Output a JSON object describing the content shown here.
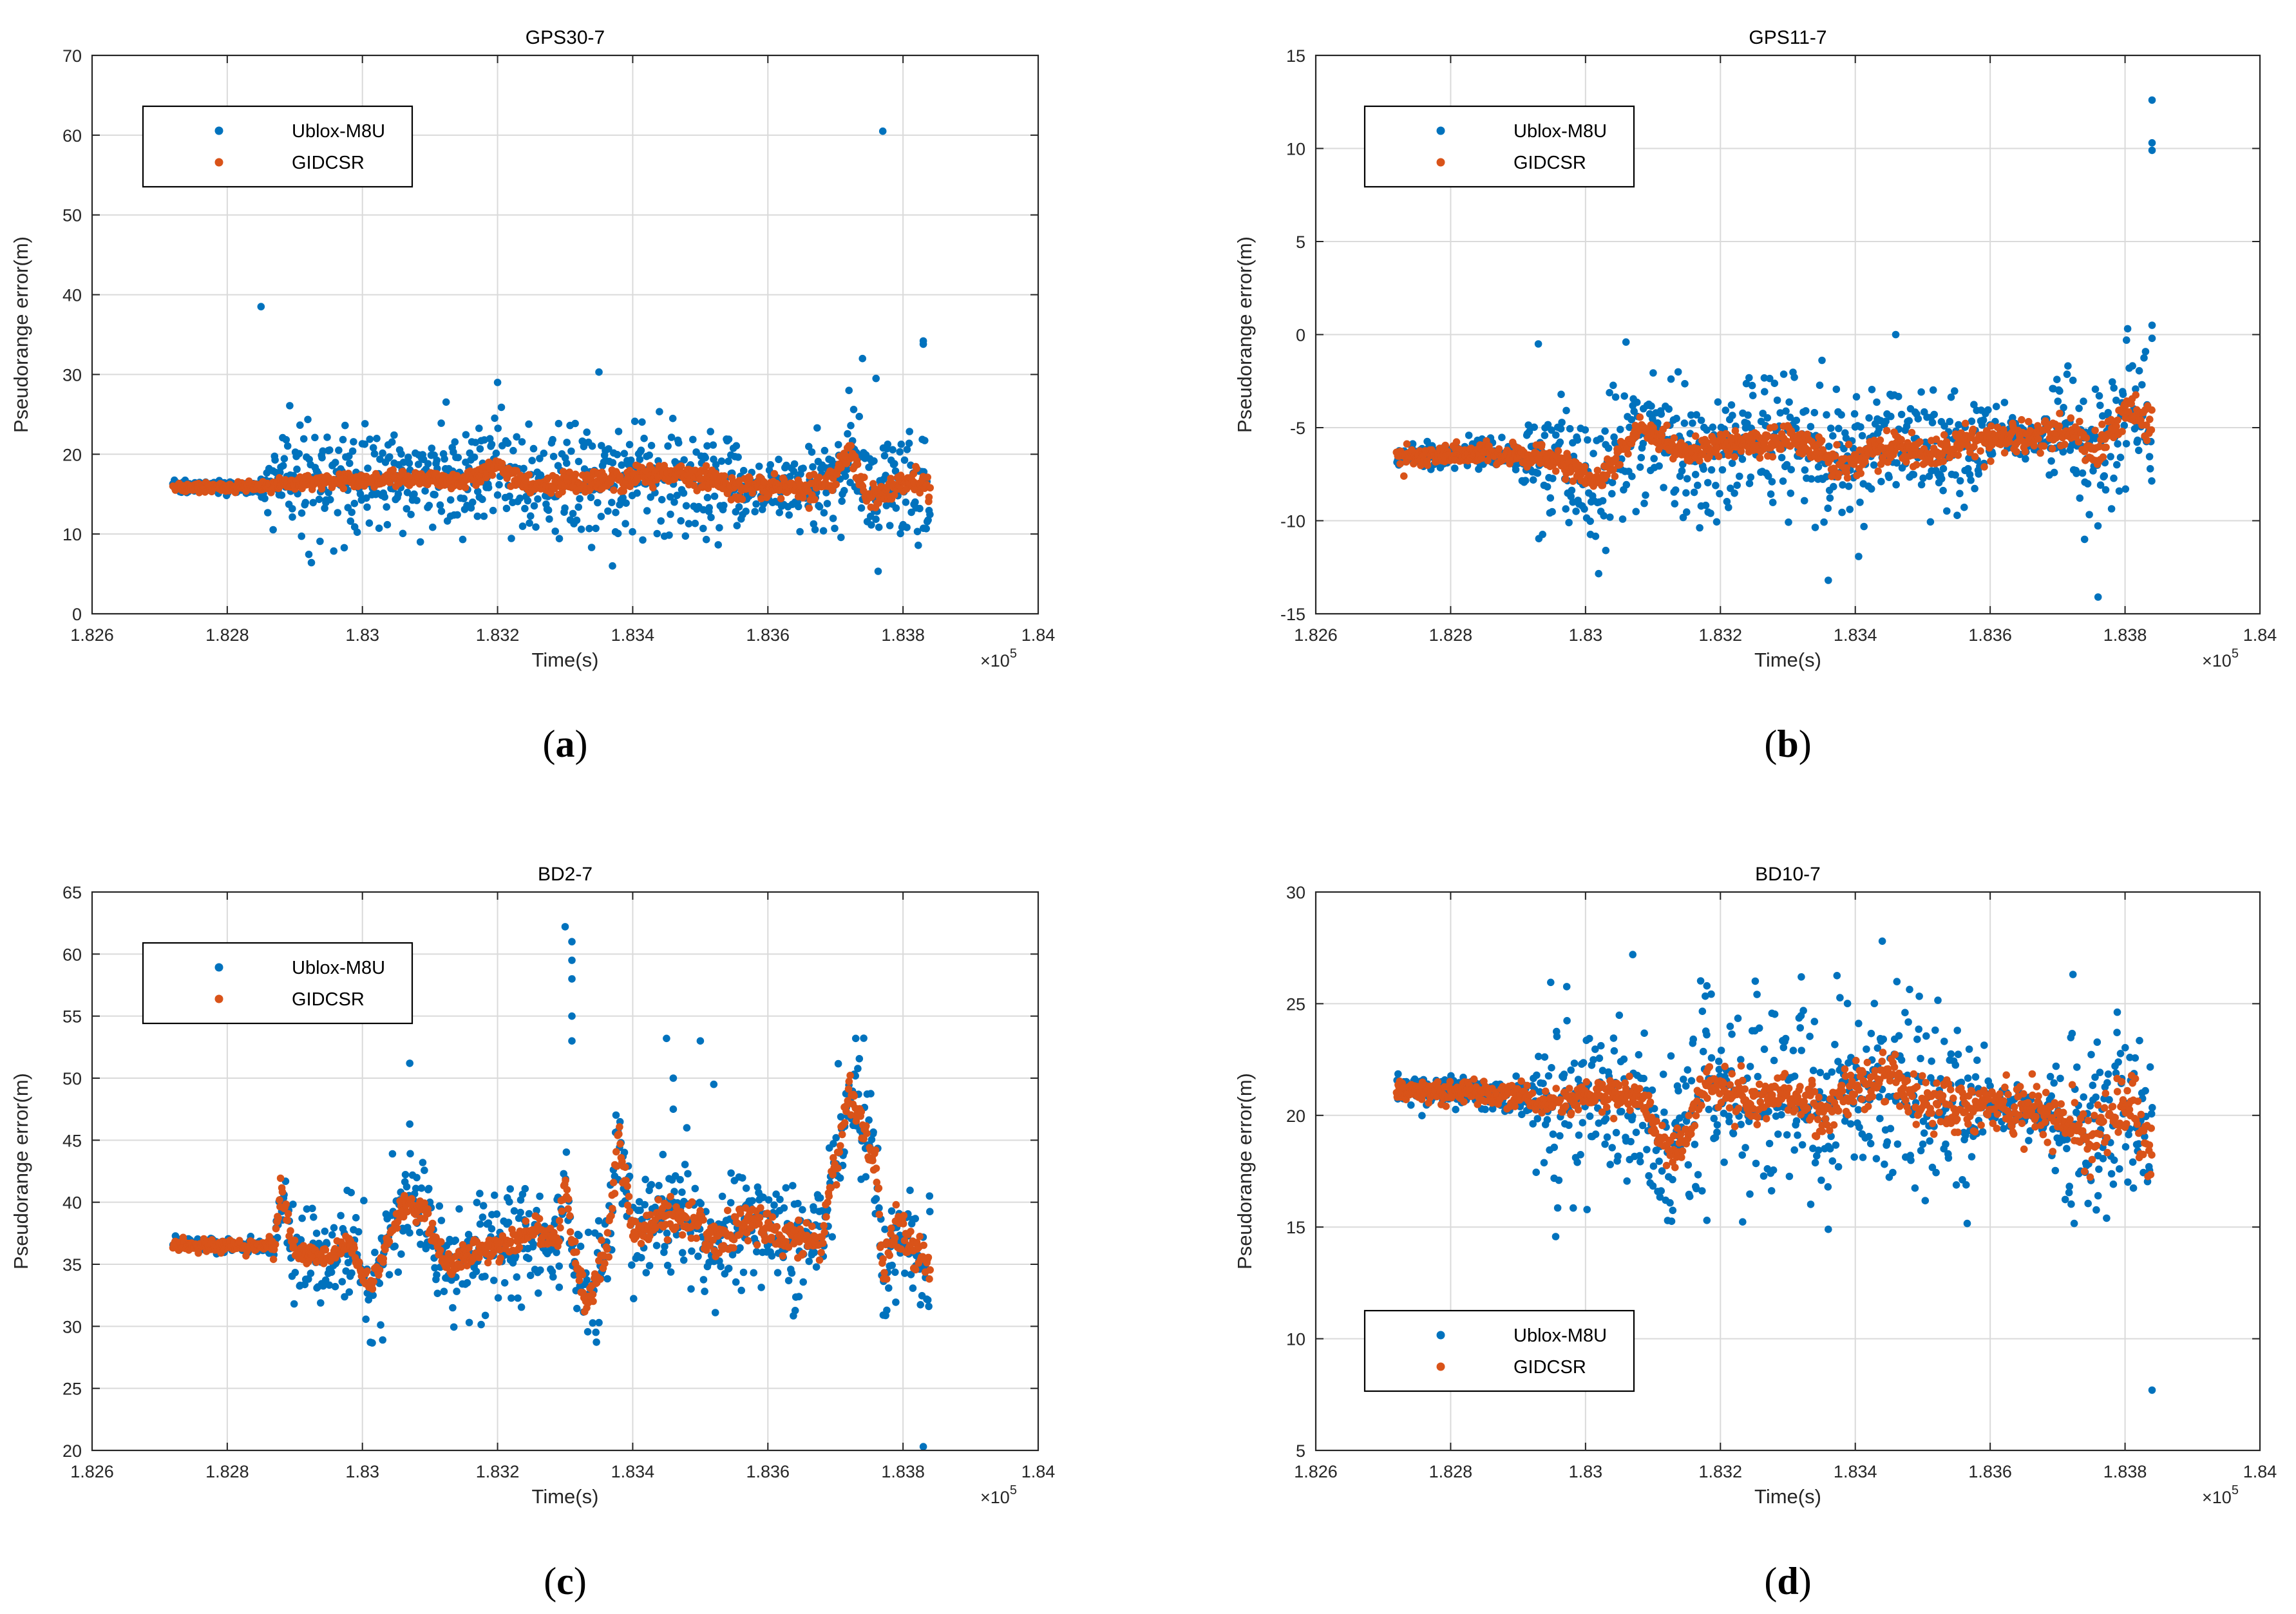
{
  "figure": {
    "colors": {
      "series1": "#0072BD",
      "series2": "#D95319",
      "grid": "#DADADA",
      "axis": "#262626"
    }
  },
  "chart_data": [
    {
      "type": "scatter",
      "panel": "a",
      "caption": "(a)",
      "caption_letter": "a",
      "title": "GPS30-7",
      "xlabel": "Time(s)",
      "ylabel": "Pseudorange error(m)",
      "xlim": [
        1.826,
        1.84
      ],
      "ylim": [
        0,
        70
      ],
      "x_scale_exponent": "×10",
      "x_scale_power": "5",
      "xticks": [
        1.826,
        1.828,
        1.83,
        1.832,
        1.834,
        1.836,
        1.838,
        1.84
      ],
      "xtick_labels": [
        "1.826",
        "1.828",
        "1.83",
        "1.832",
        "1.834",
        "1.836",
        "1.838",
        "1.84"
      ],
      "yticks": [
        0,
        10,
        20,
        30,
        40,
        50,
        60,
        70
      ],
      "ytick_labels": [
        "0",
        "10",
        "20",
        "30",
        "40",
        "50",
        "60",
        "70"
      ],
      "grid": true,
      "legend_position": "top-left",
      "legend": [
        "Ublox-M8U",
        "GIDCSR"
      ],
      "x_range": [
        1.8272,
        1.8384
      ],
      "baseline_points": [
        [
          1.8272,
          16.0
        ],
        [
          1.8285,
          15.8
        ],
        [
          1.829,
          16.5
        ],
        [
          1.831,
          17.0
        ],
        [
          1.8315,
          16.5
        ],
        [
          1.832,
          18.5
        ],
        [
          1.8325,
          16.0
        ],
        [
          1.8335,
          16.5
        ],
        [
          1.8345,
          17.5
        ],
        [
          1.835,
          17.0
        ],
        [
          1.8355,
          15.8
        ],
        [
          1.8365,
          15.5
        ],
        [
          1.837,
          17.0
        ],
        [
          1.8372,
          21.0
        ],
        [
          1.8375,
          14.5
        ],
        [
          1.838,
          16.5
        ],
        [
          1.8384,
          16.5
        ]
      ],
      "series": [
        {
          "name": "Ublox-M8U",
          "noise_profile": [
            [
              1.8272,
              0.4
            ],
            [
              1.8285,
              0.5
            ],
            [
              1.8288,
              3.5
            ],
            [
              1.8355,
              3.5
            ],
            [
              1.836,
              1.5
            ],
            [
              1.8368,
              3.5
            ],
            [
              1.8384,
              4.0
            ]
          ],
          "count": 900,
          "outliers": [
            [
              1.8285,
              38.5
            ],
            [
              1.8377,
              60.5
            ],
            [
              1.8383,
              34.2
            ],
            [
              1.8383,
              33.8
            ],
            [
              1.8374,
              32.0
            ],
            [
              1.8335,
              30.3
            ],
            [
              1.832,
              29.0
            ],
            [
              1.8337,
              6.0
            ],
            [
              1.8372,
              28.0
            ],
            [
              1.8376,
              29.5
            ]
          ]
        },
        {
          "name": "GIDCSR",
          "noise_profile": [
            [
              1.8272,
              0.3
            ],
            [
              1.8384,
              0.9
            ]
          ],
          "count": 900,
          "outliers": []
        }
      ]
    },
    {
      "type": "scatter",
      "panel": "b",
      "caption": "(b)",
      "caption_letter": "b",
      "title": "GPS11-7",
      "xlabel": "Time(s)",
      "ylabel": "Pseudorange error(m)",
      "xlim": [
        1.826,
        1.84
      ],
      "ylim": [
        -15,
        15
      ],
      "x_scale_exponent": "×10",
      "x_scale_power": "5",
      "xticks": [
        1.826,
        1.828,
        1.83,
        1.832,
        1.834,
        1.836,
        1.838,
        1.84
      ],
      "xtick_labels": [
        "1.826",
        "1.828",
        "1.83",
        "1.832",
        "1.834",
        "1.836",
        "1.838",
        "1.84"
      ],
      "yticks": [
        -15,
        -10,
        -5,
        0,
        5,
        10,
        15
      ],
      "ytick_labels": [
        "-15",
        "-10",
        "-5",
        "0",
        "5",
        "10",
        "15"
      ],
      "grid": true,
      "legend_position": "top-left",
      "legend": [
        "Ublox-M8U",
        "GIDCSR"
      ],
      "x_range": [
        1.8272,
        1.8384
      ],
      "baseline_points": [
        [
          1.8272,
          -6.5
        ],
        [
          1.8285,
          -6.4
        ],
        [
          1.8295,
          -6.6
        ],
        [
          1.8302,
          -8.0
        ],
        [
          1.8308,
          -5.0
        ],
        [
          1.8315,
          -6.5
        ],
        [
          1.832,
          -5.8
        ],
        [
          1.8325,
          -6.0
        ],
        [
          1.833,
          -5.5
        ],
        [
          1.8338,
          -7.0
        ],
        [
          1.8345,
          -6.0
        ],
        [
          1.8352,
          -6.5
        ],
        [
          1.836,
          -5.5
        ],
        [
          1.8368,
          -5.5
        ],
        [
          1.8372,
          -5.0
        ],
        [
          1.8376,
          -6.5
        ],
        [
          1.838,
          -4.0
        ],
        [
          1.8384,
          -5.0
        ]
      ],
      "series": [
        {
          "name": "Ublox-M8U",
          "noise_profile": [
            [
              1.8272,
              0.3
            ],
            [
              1.829,
              0.4
            ],
            [
              1.8293,
              1.9
            ],
            [
              1.8358,
              1.8
            ],
            [
              1.836,
              0.6
            ],
            [
              1.8368,
              0.5
            ],
            [
              1.837,
              1.8
            ],
            [
              1.8384,
              1.8
            ]
          ],
          "count": 900,
          "outliers": [
            [
              1.8384,
              12.6
            ],
            [
              1.8384,
              10.3
            ],
            [
              1.8384,
              9.9
            ],
            [
              1.8384,
              0.5
            ],
            [
              1.8384,
              -0.2
            ],
            [
              1.8293,
              -0.5
            ],
            [
              1.8306,
              -0.4
            ],
            [
              1.8346,
              0.0
            ],
            [
              1.8336,
              -13.2
            ],
            [
              1.8376,
              -14.1
            ],
            [
              1.8374,
              -11.0
            ],
            [
              1.8303,
              -11.6
            ]
          ]
        },
        {
          "name": "GIDCSR",
          "noise_profile": [
            [
              1.8272,
              0.25
            ],
            [
              1.8384,
              0.5
            ]
          ],
          "count": 900,
          "outliers": []
        }
      ]
    },
    {
      "type": "scatter",
      "panel": "c",
      "caption": "(c)",
      "caption_letter": "c",
      "title": "BD2-7",
      "xlabel": "Time(s)",
      "ylabel": "Pseudorange error(m)",
      "xlim": [
        1.826,
        1.84
      ],
      "ylim": [
        20,
        65
      ],
      "x_scale_exponent": "×10",
      "x_scale_power": "5",
      "xticks": [
        1.826,
        1.828,
        1.83,
        1.832,
        1.834,
        1.836,
        1.838,
        1.84
      ],
      "xtick_labels": [
        "1.826",
        "1.828",
        "1.83",
        "1.832",
        "1.834",
        "1.836",
        "1.838",
        "1.84"
      ],
      "yticks": [
        20,
        25,
        30,
        35,
        40,
        45,
        50,
        55,
        60,
        65
      ],
      "ytick_labels": [
        "20",
        "25",
        "30",
        "35",
        "40",
        "45",
        "50",
        "55",
        "60",
        "65"
      ],
      "grid": true,
      "legend_position": "top-left",
      "legend": [
        "Ublox-M8U",
        "GIDCSR"
      ],
      "x_range": [
        1.8272,
        1.8384
      ],
      "baseline_points": [
        [
          1.8272,
          36.5
        ],
        [
          1.8287,
          36.5
        ],
        [
          1.8288,
          41.0
        ],
        [
          1.829,
          36.0
        ],
        [
          1.8295,
          35.5
        ],
        [
          1.8298,
          37.0
        ],
        [
          1.8301,
          33.0
        ],
        [
          1.8304,
          37.0
        ],
        [
          1.8306,
          40.0
        ],
        [
          1.8309,
          39.5
        ],
        [
          1.8312,
          35.0
        ],
        [
          1.8315,
          35.5
        ],
        [
          1.832,
          36.5
        ],
        [
          1.8325,
          37.5
        ],
        [
          1.8329,
          37.0
        ],
        [
          1.833,
          42.0
        ],
        [
          1.8331,
          36.5
        ],
        [
          1.8333,
          32.0
        ],
        [
          1.8336,
          35.5
        ],
        [
          1.8338,
          45.5
        ],
        [
          1.834,
          37.5
        ],
        [
          1.8345,
          39.0
        ],
        [
          1.835,
          38.0
        ],
        [
          1.8352,
          37.0
        ],
        [
          1.8358,
          38.5
        ],
        [
          1.8362,
          37.0
        ],
        [
          1.8368,
          37.0
        ],
        [
          1.8372,
          49.0
        ],
        [
          1.8376,
          43.0
        ],
        [
          1.8377,
          34.0
        ],
        [
          1.8379,
          38.0
        ],
        [
          1.8384,
          34.5
        ]
      ],
      "series": [
        {
          "name": "Ublox-M8U",
          "noise_profile": [
            [
              1.8272,
              0.3
            ],
            [
              1.8287,
              0.3
            ],
            [
              1.829,
              2.2
            ],
            [
              1.8384,
              2.5
            ]
          ],
          "count": 900,
          "outliers": [
            [
              1.833,
              62.2
            ],
            [
              1.8331,
              61.0
            ],
            [
              1.8331,
              59.5
            ],
            [
              1.8331,
              58.0
            ],
            [
              1.8331,
              55.0
            ],
            [
              1.8331,
              53.0
            ],
            [
              1.8307,
              51.2
            ],
            [
              1.8345,
              53.2
            ],
            [
              1.835,
              53.0
            ],
            [
              1.8373,
              53.2
            ],
            [
              1.8307,
              46.3
            ],
            [
              1.8383,
              20.3
            ],
            [
              1.8303,
              28.9
            ],
            [
              1.8335,
              30.3
            ],
            [
              1.8346,
              50.0
            ],
            [
              1.8352,
              49.5
            ],
            [
              1.8346,
              47.5
            ],
            [
              1.8348,
              46.0
            ]
          ]
        },
        {
          "name": "GIDCSR",
          "noise_profile": [
            [
              1.8272,
              0.3
            ],
            [
              1.8384,
              0.9
            ]
          ],
          "count": 900,
          "outliers": []
        }
      ]
    },
    {
      "type": "scatter",
      "panel": "d",
      "caption": "(d)",
      "caption_letter": "d",
      "title": "BD10-7",
      "xlabel": "Time(s)",
      "ylabel": "Pseudorange error(m)",
      "xlim": [
        1.826,
        1.84
      ],
      "ylim": [
        5,
        30
      ],
      "x_scale_exponent": "×10",
      "x_scale_power": "5",
      "xticks": [
        1.826,
        1.828,
        1.83,
        1.832,
        1.834,
        1.836,
        1.838,
        1.84
      ],
      "xtick_labels": [
        "1.826",
        "1.828",
        "1.83",
        "1.832",
        "1.834",
        "1.836",
        "1.838",
        "1.84"
      ],
      "yticks": [
        5,
        10,
        15,
        20,
        25,
        30
      ],
      "ytick_labels": [
        "5",
        "10",
        "15",
        "20",
        "25",
        "30"
      ],
      "grid": true,
      "legend_position": "bottom-left",
      "legend": [
        "Ublox-M8U",
        "GIDCSR"
      ],
      "x_range": [
        1.8272,
        1.8384
      ],
      "baseline_points": [
        [
          1.8272,
          21.2
        ],
        [
          1.8285,
          21.0
        ],
        [
          1.829,
          20.8
        ],
        [
          1.8295,
          20.5
        ],
        [
          1.83,
          21.0
        ],
        [
          1.8308,
          20.8
        ],
        [
          1.8313,
          18.0
        ],
        [
          1.8318,
          21.5
        ],
        [
          1.8325,
          20.5
        ],
        [
          1.833,
          21.0
        ],
        [
          1.8335,
          20.0
        ],
        [
          1.834,
          21.5
        ],
        [
          1.8346,
          21.8
        ],
        [
          1.835,
          20.5
        ],
        [
          1.836,
          20.5
        ],
        [
          1.837,
          20.0
        ],
        [
          1.8375,
          19.0
        ],
        [
          1.838,
          20.5
        ],
        [
          1.8384,
          18.5
        ]
      ],
      "series": [
        {
          "name": "Ublox-M8U",
          "noise_profile": [
            [
              1.8272,
              0.3
            ],
            [
              1.8292,
              0.4
            ],
            [
              1.8293,
              2.2
            ],
            [
              1.8358,
              2.0
            ],
            [
              1.836,
              0.5
            ],
            [
              1.8368,
              0.5
            ],
            [
              1.8372,
              2.2
            ],
            [
              1.8384,
              2.0
            ]
          ],
          "count": 900,
          "outliers": [
            [
              1.8384,
              7.7
            ],
            [
              1.8344,
              27.8
            ],
            [
              1.8318,
              25.8
            ],
            [
              1.8307,
              27.2
            ],
            [
              1.8336,
              14.9
            ],
            [
              1.8318,
              15.3
            ],
            [
              1.8376,
              16.4
            ],
            [
              1.8332,
              26.2
            ]
          ]
        },
        {
          "name": "GIDCSR",
          "noise_profile": [
            [
              1.8272,
              0.25
            ],
            [
              1.8384,
              0.7
            ]
          ],
          "count": 900,
          "outliers": []
        }
      ]
    }
  ]
}
